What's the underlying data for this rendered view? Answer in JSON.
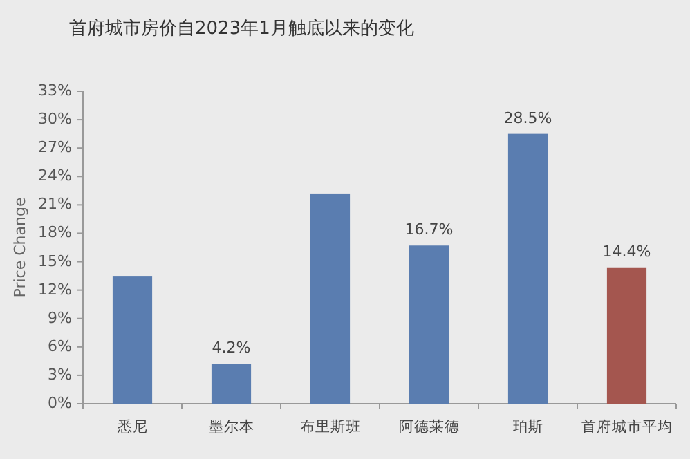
{
  "chart_data": {
    "type": "bar",
    "title": "首府城市房价自2023年1月触底以来的变化",
    "ylabel": "Price Change",
    "categories": [
      "悉尼",
      "墨尔本",
      "布里斯班",
      "阿德莱德",
      "珀斯",
      "首府城市平均"
    ],
    "values": [
      13.5,
      4.2,
      22.2,
      16.7,
      28.5,
      14.4
    ],
    "colors": [
      "#5a7db0",
      "#5a7db0",
      "#5a7db0",
      "#5a7db0",
      "#5a7db0",
      "#a4564f"
    ],
    "value_labels": [
      null,
      "4.2%",
      null,
      "16.7%",
      "28.5%",
      "14.4%"
    ],
    "ylim": [
      0,
      33
    ],
    "yticks": [
      {
        "value": 0,
        "label": "0%"
      },
      {
        "value": 3,
        "label": "3%"
      },
      {
        "value": 6,
        "label": "6%"
      },
      {
        "value": 9,
        "label": "9%"
      },
      {
        "value": 12,
        "label": "12%"
      },
      {
        "value": 15,
        "label": "15%"
      },
      {
        "value": 18,
        "label": "18%"
      },
      {
        "value": 21,
        "label": "21%"
      },
      {
        "value": 24,
        "label": "24%"
      },
      {
        "value": 27,
        "label": "27%"
      },
      {
        "value": 30,
        "label": "30%"
      },
      {
        "value": 33,
        "label": "33%"
      }
    ],
    "grid": false
  }
}
